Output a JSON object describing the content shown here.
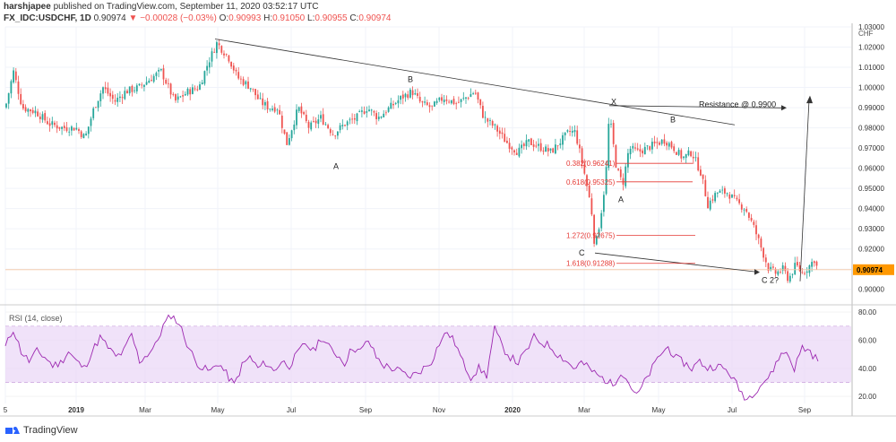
{
  "header": {
    "author": "harshjapee",
    "published": "published on TradingView.com, September 11, 2020 03:52:17 UTC",
    "symbol": "FX_IDC:USDCHF, 1D",
    "last": "0.90974",
    "change": "▼ −0.00028 (−0.03%)",
    "o_label": "O:",
    "o": "0.90993",
    "h_label": "H:",
    "h": "0.91050",
    "l_label": "L:",
    "l": "0.90955",
    "c_label": "C:",
    "c": "0.90974"
  },
  "footer": {
    "brand": "TradingView"
  },
  "colors": {
    "up": "#26a69a",
    "down": "#ef5350",
    "rsi": "#9c27b0",
    "rsi_band": "#e9d5f7",
    "price_tag": "#ff9800",
    "fib": "#e53935",
    "trendline": "#333333"
  },
  "chart_data": [
    {
      "type": "candlestick",
      "symbol": "FX_IDC:USDCHF",
      "timeframe": "1D",
      "currency": "CHF",
      "last_price": 0.90974,
      "ylim": [
        0.895,
        1.03
      ],
      "y_ticks": [
        "1.03000",
        "1.02000",
        "1.01000",
        "1.00000",
        "0.99000",
        "0.98000",
        "0.97000",
        "0.96000",
        "0.95000",
        "0.94000",
        "0.93000",
        "0.92000",
        "0.91000",
        "0.90000"
      ],
      "x_ticks": [
        "5",
        "2019",
        "Mar",
        "May",
        "Jul",
        "Sep",
        "Nov",
        "2020",
        "Mar",
        "May",
        "Jul",
        "Sep"
      ],
      "path": [
        [
          0,
          0.988
        ],
        [
          6,
          0.99
        ],
        [
          15,
          1.008
        ],
        [
          25,
          0.99
        ],
        [
          40,
          0.988
        ],
        [
          55,
          0.982
        ],
        [
          70,
          0.98
        ],
        [
          85,
          0.98
        ],
        [
          95,
          0.975
        ],
        [
          105,
          0.99
        ],
        [
          115,
          1.0
        ],
        [
          128,
          0.993
        ],
        [
          140,
          0.998
        ],
        [
          155,
          1.0
        ],
        [
          170,
          1.005
        ],
        [
          180,
          1.008
        ],
        [
          195,
          0.993
        ],
        [
          210,
          0.998
        ],
        [
          222,
          1.0
        ],
        [
          232,
          1.012
        ],
        [
          242,
          1.022
        ],
        [
          255,
          1.015
        ],
        [
          265,
          1.005
        ],
        [
          280,
          1.0
        ],
        [
          290,
          0.993
        ],
        [
          300,
          0.99
        ],
        [
          310,
          0.99
        ],
        [
          320,
          0.972
        ],
        [
          333,
          0.99
        ],
        [
          345,
          0.98
        ],
        [
          358,
          0.985
        ],
        [
          372,
          0.977
        ],
        [
          385,
          0.982
        ],
        [
          398,
          0.985
        ],
        [
          410,
          0.99
        ],
        [
          422,
          0.985
        ],
        [
          435,
          0.99
        ],
        [
          448,
          0.995
        ],
        [
          460,
          0.998
        ],
        [
          470,
          0.992
        ],
        [
          482,
          0.99
        ],
        [
          495,
          0.995
        ],
        [
          510,
          0.992
        ],
        [
          520,
          0.995
        ],
        [
          530,
          0.998
        ],
        [
          540,
          0.985
        ],
        [
          553,
          0.98
        ],
        [
          565,
          0.973
        ],
        [
          578,
          0.968
        ],
        [
          590,
          0.973
        ],
        [
          605,
          0.97
        ],
        [
          615,
          0.968
        ],
        [
          625,
          0.973
        ],
        [
          635,
          0.978
        ],
        [
          642,
          0.978
        ],
        [
          652,
          0.958
        ],
        [
          660,
          0.94
        ],
        [
          664,
          0.92
        ],
        [
          670,
          0.935
        ],
        [
          676,
          0.955
        ],
        [
          680,
          0.987
        ],
        [
          688,
          0.96
        ],
        [
          695,
          0.952
        ],
        [
          702,
          0.97
        ],
        [
          712,
          0.968
        ],
        [
          722,
          0.97
        ],
        [
          732,
          0.972
        ],
        [
          742,
          0.974
        ],
        [
          752,
          0.97
        ],
        [
          762,
          0.965
        ],
        [
          772,
          0.968
        ],
        [
          782,
          0.958
        ],
        [
          790,
          0.942
        ],
        [
          800,
          0.948
        ],
        [
          812,
          0.948
        ],
        [
          822,
          0.943
        ],
        [
          832,
          0.94
        ],
        [
          842,
          0.93
        ],
        [
          850,
          0.92
        ],
        [
          858,
          0.91
        ],
        [
          866,
          0.908
        ],
        [
          874,
          0.91
        ],
        [
          880,
          0.905
        ],
        [
          888,
          0.912
        ],
        [
          896,
          0.908
        ],
        [
          904,
          0.912
        ],
        [
          909,
          0.915
        ],
        [
          913,
          0.909
        ]
      ],
      "series": [
        {
          "name": "FX_IDC:USDCHF, 1D"
        }
      ],
      "annotations": [
        {
          "text": "A",
          "x": 372,
          "y": 0.961
        },
        {
          "text": "B",
          "x": 455,
          "y": 1.004
        },
        {
          "text": "X",
          "x": 682,
          "y": 0.993
        },
        {
          "text": "Resistance @ 0.9900",
          "x": 780,
          "y": 0.9915
        },
        {
          "text": "B",
          "x": 748,
          "y": 0.984
        },
        {
          "text": "A",
          "x": 690,
          "y": 0.9445
        },
        {
          "text": "C",
          "x": 646,
          "y": 0.918
        },
        {
          "text": "C 2?",
          "x": 850,
          "y": 0.9045
        }
      ],
      "fibonacci": [
        {
          "label": "0.382(0.96241)",
          "value": 0.96241
        },
        {
          "label": "0.618(0.95325)",
          "value": 0.95325
        },
        {
          "label": "1.272(0.92675)",
          "value": 0.92675
        },
        {
          "label": "1.618(0.91288)",
          "value": 0.91288
        }
      ]
    },
    {
      "type": "line",
      "title": "RSI (14, close)",
      "ylim": [
        15,
        82
      ],
      "y_ticks": [
        "80.00",
        "60.00",
        "40.00",
        "20.00"
      ],
      "band": [
        30,
        70
      ],
      "series": [
        {
          "name": "RSI (14, close)",
          "values": [
            55,
            68,
            52,
            45,
            52,
            48,
            42,
            44,
            52,
            45,
            40,
            52,
            62,
            55,
            48,
            52,
            64,
            45,
            50,
            56,
            70,
            78,
            72,
            58,
            46,
            40,
            38,
            44,
            36,
            28,
            42,
            48,
            40,
            44,
            38,
            45,
            42,
            50,
            58,
            52,
            62,
            55,
            50,
            44,
            55,
            52,
            60,
            48,
            42,
            40,
            38,
            34,
            36,
            40,
            45,
            58,
            66,
            58,
            44,
            34,
            40,
            35,
            68,
            55,
            48,
            44,
            52,
            62,
            58,
            56,
            50,
            46,
            40,
            44,
            40,
            35,
            32,
            28,
            38,
            30,
            20,
            30,
            40,
            50,
            55,
            47,
            44,
            40,
            45,
            40,
            42,
            40,
            35,
            25,
            18,
            24,
            30,
            35,
            48,
            52,
            40,
            55,
            52,
            45
          ]
        }
      ]
    }
  ]
}
